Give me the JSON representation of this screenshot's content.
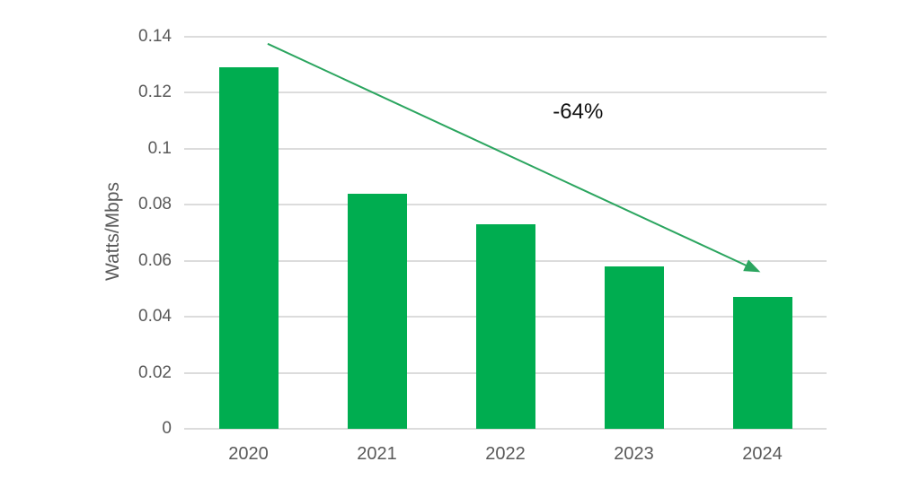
{
  "chart_data": {
    "type": "bar",
    "title": "",
    "xlabel": "",
    "ylabel": "Watts/Mbps",
    "categories": [
      "2020",
      "2021",
      "2022",
      "2023",
      "2024"
    ],
    "values": [
      0.129,
      0.084,
      0.073,
      0.058,
      0.047
    ],
    "ylim": [
      0,
      0.14
    ],
    "yticks": [
      0,
      0.02,
      0.04,
      0.06,
      0.08,
      0.1,
      0.12,
      0.14
    ],
    "ytick_labels": [
      "0",
      "0.02",
      "0.04",
      "0.06",
      "0.08",
      "0.1",
      "0.12",
      "0.14"
    ],
    "grid": true,
    "legend": "none",
    "bar_color": "#00AD50",
    "annotation": {
      "text": "-64%",
      "x_frac": 0.613,
      "value": 0.113
    },
    "arrow": {
      "color": "#2BA55F",
      "from": {
        "x_frac": 0.13,
        "value": 0.1375
      },
      "to": {
        "x_frac": 0.892,
        "value": 0.0565
      }
    }
  },
  "colors": {
    "background": "#ffffff",
    "gridline": "#dcdcdc",
    "axis_text": "#595959"
  }
}
